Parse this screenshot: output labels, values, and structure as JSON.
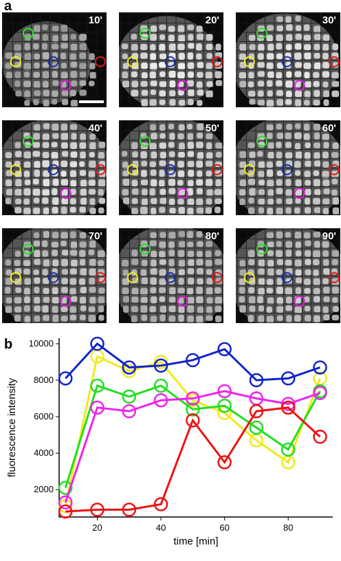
{
  "figure": {
    "panel_a_label": "a",
    "panel_b_label": "b"
  },
  "tiles": [
    {
      "label": "10'",
      "cell_intensity": 0.35,
      "spread": 0.55
    },
    {
      "label": "20'",
      "cell_intensity": 0.85,
      "spread": 0.75
    },
    {
      "label": "30'",
      "cell_intensity": 0.8,
      "spread": 0.85
    },
    {
      "label": "40'",
      "cell_intensity": 0.75,
      "spread": 0.95
    },
    {
      "label": "50'",
      "cell_intensity": 0.72,
      "spread": 1.0
    },
    {
      "label": "60'",
      "cell_intensity": 0.65,
      "spread": 1.0
    },
    {
      "label": "70'",
      "cell_intensity": 0.55,
      "spread": 1.0
    },
    {
      "label": "80'",
      "cell_intensity": 0.5,
      "spread": 1.0
    },
    {
      "label": "90'",
      "cell_intensity": 0.6,
      "spread": 1.0
    }
  ],
  "marker_colors": {
    "green": "#2ee02e",
    "yellow": "#f2f01a",
    "blue": "#1a30a8",
    "red": "#e01a1a",
    "magenta": "#e01ae0"
  },
  "chart_data": {
    "type": "line",
    "xlabel": "time [min]",
    "ylabel": "fluorescence intensity",
    "xlim": [
      8,
      94
    ],
    "ylim": [
      500,
      10300
    ],
    "xticks": [
      20,
      40,
      60,
      80
    ],
    "yticks": [
      2000,
      4000,
      6000,
      8000,
      10000
    ],
    "x": [
      10,
      20,
      30,
      40,
      50,
      60,
      70,
      80,
      90
    ],
    "series": [
      {
        "color": "#f0ea1a",
        "values": [
          1100,
          9300,
          8500,
          9000,
          6900,
          6200,
          4700,
          3500,
          8100
        ]
      },
      {
        "color": "#22dd22",
        "values": [
          2100,
          7700,
          7100,
          7700,
          6400,
          6600,
          5400,
          4200,
          7400
        ]
      },
      {
        "color": "#ee22ee",
        "values": [
          1300,
          6500,
          6300,
          6900,
          7000,
          7400,
          7000,
          6700,
          7300
        ]
      },
      {
        "color": "#ee1111",
        "values": [
          800,
          900,
          900,
          1200,
          5800,
          3500,
          6300,
          6500,
          4900
        ]
      },
      {
        "color": "#1122cc",
        "values": [
          8100,
          10000,
          8700,
          8800,
          9100,
          9700,
          8000,
          8100,
          8700
        ]
      }
    ]
  }
}
